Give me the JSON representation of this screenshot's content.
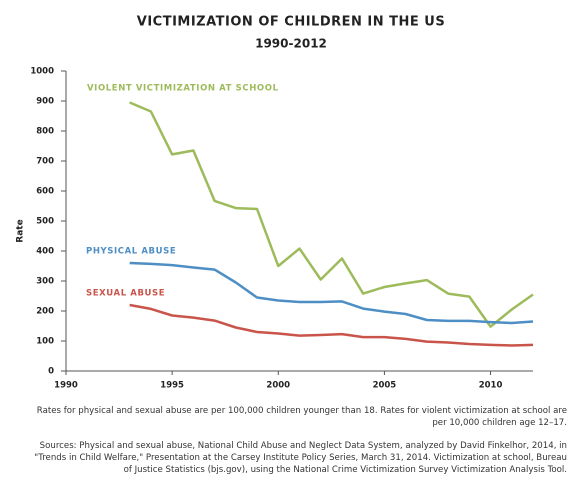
{
  "chart_data": {
    "type": "line",
    "title": "VICTIMIZATION OF CHILDREN IN THE US",
    "subtitle": "1990-2012",
    "y_label": "Rate",
    "x": [
      1993,
      1994,
      1995,
      1996,
      1997,
      1998,
      1999,
      2000,
      2001,
      2002,
      2003,
      2004,
      2005,
      2006,
      2007,
      2008,
      2009,
      2010,
      2011,
      2012
    ],
    "xlim": [
      1990,
      2012
    ],
    "xticks": [
      1990,
      1995,
      2000,
      2005,
      2010
    ],
    "ylim": [
      0,
      1000
    ],
    "yticks": [
      0,
      100,
      200,
      300,
      400,
      500,
      600,
      700,
      800,
      900,
      1000
    ],
    "series": [
      {
        "name": "VIOLENT VICTIMIZATION AT SCHOOL",
        "color": "#9dbb5b",
        "values": [
          895,
          865,
          722,
          735,
          567,
          543,
          540,
          350,
          408,
          305,
          375,
          258,
          280,
          292,
          303,
          258,
          248,
          148,
          205,
          255
        ]
      },
      {
        "name": "PHYSICAL ABUSE",
        "color": "#4d8fc4",
        "values": [
          360,
          357,
          353,
          345,
          338,
          295,
          245,
          235,
          230,
          230,
          232,
          208,
          198,
          190,
          170,
          167,
          167,
          163,
          160,
          165
        ]
      },
      {
        "name": "SEXUAL ABUSE",
        "color": "#c9544a",
        "values": [
          220,
          207,
          185,
          178,
          168,
          145,
          130,
          125,
          118,
          120,
          123,
          113,
          113,
          107,
          98,
          95,
          90,
          87,
          85,
          87
        ]
      }
    ],
    "note": "Rates for physical and sexual abuse are per 100,000 children younger than 18. Rates for violent victimization at school are per 10,000 children age 12–17.",
    "source": "Sources: Physical and sexual abuse, National Child Abuse and Neglect Data System, analyzed by David Finkelhor, 2014, in \"Trends in Child Welfare,\" Presentation at the Carsey Institute Policy Series, March 31, 2014. Victimization at school, Bureau of Justice Statistics (bjs.gov), using the National Crime Victimization Survey Victimization Analysis Tool."
  }
}
